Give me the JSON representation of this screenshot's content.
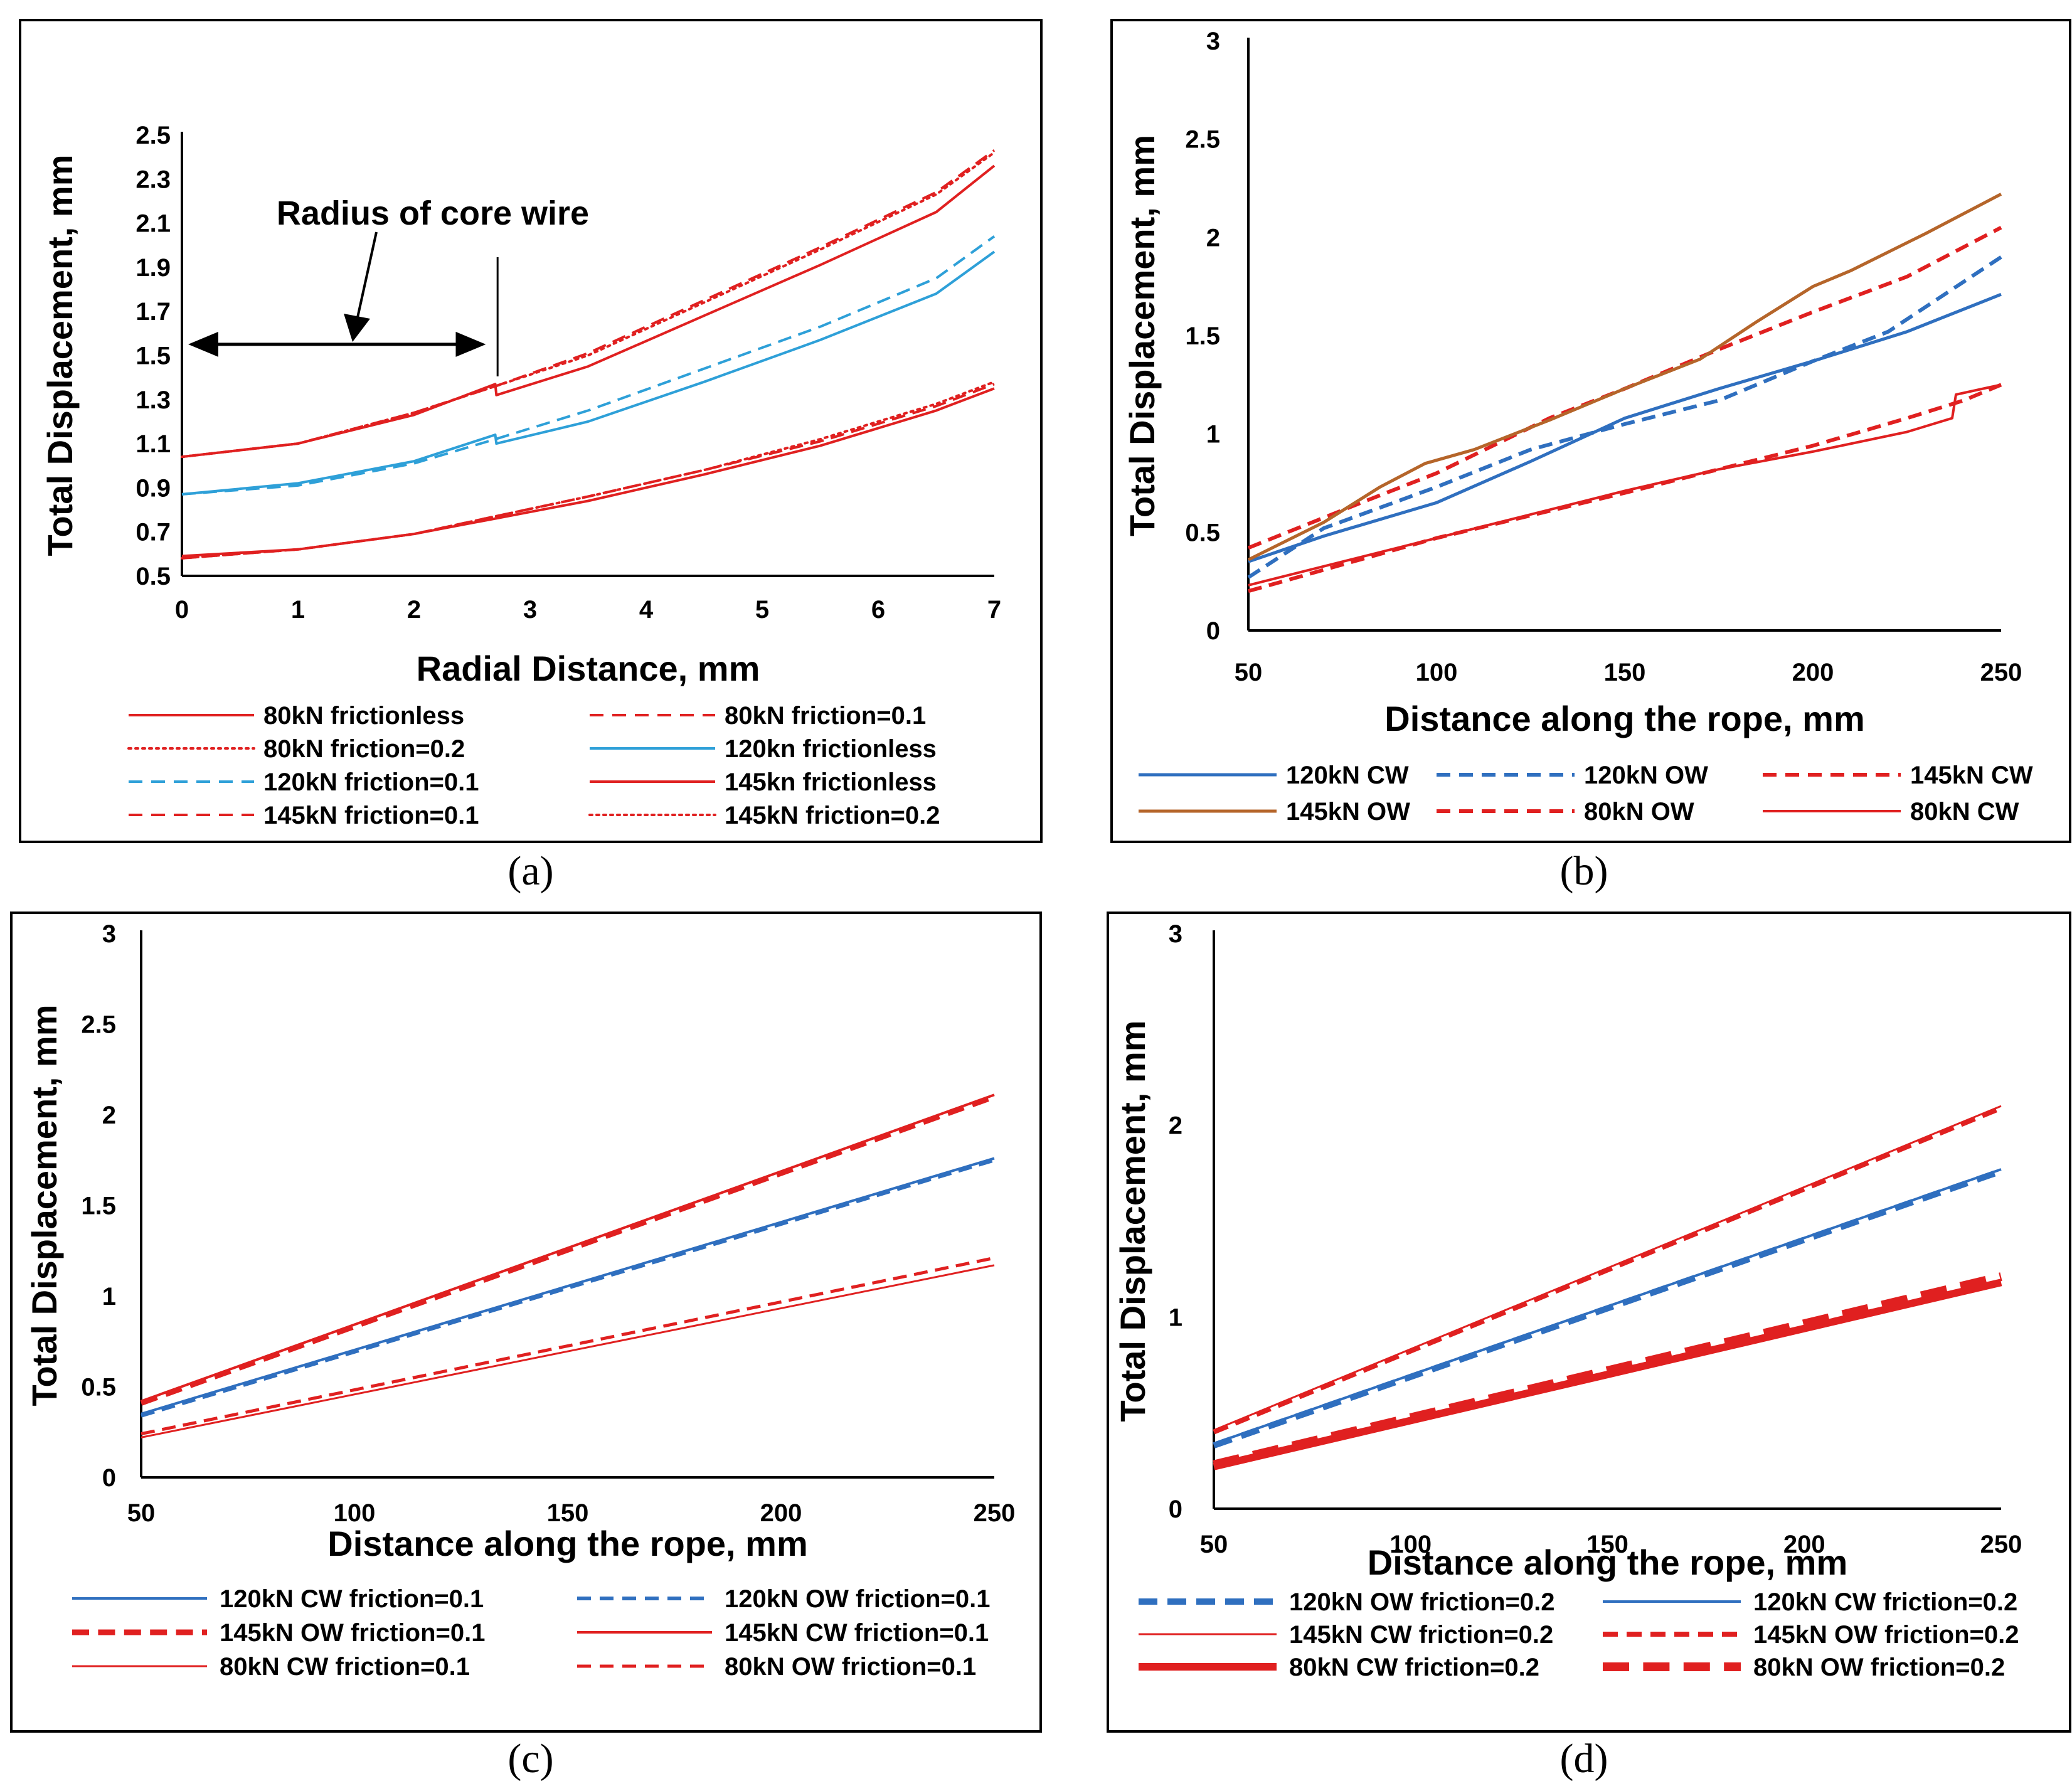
{
  "colors": {
    "red": "#e02020",
    "blue_light": "#2ea0d8",
    "blue": "#2f6fbf",
    "brown": "#b5652a",
    "axis": "#000000"
  },
  "chart_data": [
    {
      "panel_label": "(a)",
      "type": "line",
      "xlabel": "Radial Distance, mm",
      "ylabel": "Total Displacement, mm",
      "xlim": [
        0,
        7
      ],
      "ylim": [
        0.5,
        2.5
      ],
      "x_ticks": [
        "0",
        "1",
        "2",
        "3",
        "4",
        "5",
        "6",
        "7"
      ],
      "y_ticks": [
        "0.5",
        "0.7",
        "0.9",
        "1.1",
        "1.3",
        "1.5",
        "1.7",
        "1.9",
        "2.1",
        "2.3",
        "2.5"
      ],
      "annotation": "Radius of core wire",
      "annotation_span": [
        0,
        2.7
      ],
      "legend_cols": 2,
      "series": [
        {
          "name": "80kN frictionless",
          "color": "red",
          "dash": "solid",
          "width": 4,
          "points": [
            [
              0,
              0.59
            ],
            [
              1,
              0.62
            ],
            [
              2,
              0.69
            ],
            [
              2.7,
              0.76
            ],
            [
              3.5,
              0.84
            ],
            [
              4.5,
              0.96
            ],
            [
              5.5,
              1.09
            ],
            [
              6.5,
              1.25
            ],
            [
              7,
              1.35
            ]
          ]
        },
        {
          "name": "80kN friction=0.1",
          "color": "red",
          "dash": "dash",
          "width": 4,
          "points": [
            [
              0,
              0.58
            ],
            [
              1,
              0.62
            ],
            [
              2,
              0.69
            ],
            [
              2.7,
              0.77
            ],
            [
              3.5,
              0.86
            ],
            [
              4.5,
              0.98
            ],
            [
              5.5,
              1.11
            ],
            [
              6.5,
              1.27
            ],
            [
              7,
              1.37
            ]
          ]
        },
        {
          "name": "80kN friction=0.2",
          "color": "red",
          "dash": "dot",
          "width": 4,
          "points": [
            [
              0,
              0.58
            ],
            [
              1,
              0.62
            ],
            [
              2,
              0.69
            ],
            [
              2.7,
              0.77
            ],
            [
              3.5,
              0.86
            ],
            [
              4.5,
              0.98
            ],
            [
              5.5,
              1.12
            ],
            [
              6.5,
              1.28
            ],
            [
              7,
              1.38
            ]
          ]
        },
        {
          "name": "120kn frictionless",
          "color": "blue_light",
          "dash": "solid",
          "width": 4,
          "points": [
            [
              0,
              0.87
            ],
            [
              1,
              0.92
            ],
            [
              2,
              1.02
            ],
            [
              2.7,
              1.14
            ],
            [
              2.71,
              1.1
            ],
            [
              3.5,
              1.2
            ],
            [
              4.5,
              1.38
            ],
            [
              5.5,
              1.57
            ],
            [
              6.5,
              1.78
            ],
            [
              7,
              1.97
            ]
          ]
        },
        {
          "name": "120kN friction=0.1",
          "color": "blue_light",
          "dash": "dash",
          "width": 4,
          "points": [
            [
              0,
              0.87
            ],
            [
              1,
              0.91
            ],
            [
              2,
              1.01
            ],
            [
              2.7,
              1.12
            ],
            [
              3.5,
              1.25
            ],
            [
              4.5,
              1.44
            ],
            [
              5.5,
              1.63
            ],
            [
              6.5,
              1.85
            ],
            [
              7,
              2.04
            ]
          ]
        },
        {
          "name": "145kn frictionless",
          "color": "red",
          "dash": "solid",
          "width": 4,
          "points": [
            [
              0,
              1.04
            ],
            [
              1,
              1.1
            ],
            [
              2,
              1.23
            ],
            [
              2.7,
              1.37
            ],
            [
              2.71,
              1.32
            ],
            [
              3.5,
              1.45
            ],
            [
              4.5,
              1.68
            ],
            [
              5.5,
              1.91
            ],
            [
              6.5,
              2.15
            ],
            [
              7,
              2.36
            ]
          ]
        },
        {
          "name": "145kN friction=0.1",
          "color": "red",
          "dash": "dash",
          "width": 4,
          "points": [
            [
              0,
              1.04
            ],
            [
              1,
              1.1
            ],
            [
              2,
              1.24
            ],
            [
              2.7,
              1.36
            ],
            [
              3.5,
              1.51
            ],
            [
              4.5,
              1.75
            ],
            [
              5.5,
              1.99
            ],
            [
              6.5,
              2.24
            ],
            [
              7,
              2.43
            ]
          ]
        },
        {
          "name": "145kN friction=0.2",
          "color": "red",
          "dash": "dot",
          "width": 4,
          "points": [
            [
              0,
              1.04
            ],
            [
              1,
              1.1
            ],
            [
              2,
              1.24
            ],
            [
              2.7,
              1.36
            ],
            [
              3.5,
              1.5
            ],
            [
              4.5,
              1.74
            ],
            [
              5.5,
              1.98
            ],
            [
              6.5,
              2.23
            ],
            [
              7,
              2.42
            ]
          ]
        }
      ]
    },
    {
      "panel_label": "(b)",
      "type": "line",
      "xlabel": "Distance along the rope, mm",
      "ylabel": "Total Displacement, mm",
      "xlim": [
        50,
        250
      ],
      "ylim": [
        0,
        3
      ],
      "x_ticks": [
        "50",
        "100",
        "150",
        "200",
        "250"
      ],
      "y_ticks": [
        "0",
        "0.5",
        "1",
        "1.5",
        "2",
        "2.5",
        "3"
      ],
      "legend_cols": 3,
      "series": [
        {
          "name": "120kN CW",
          "color": "blue",
          "dash": "solid",
          "width": 5,
          "points": [
            [
              50,
              0.35
            ],
            [
              70,
              0.48
            ],
            [
              100,
              0.65
            ],
            [
              125,
              0.86
            ],
            [
              150,
              1.08
            ],
            [
              175,
              1.23
            ],
            [
              200,
              1.37
            ],
            [
              225,
              1.52
            ],
            [
              250,
              1.71
            ]
          ]
        },
        {
          "name": "120kN OW",
          "color": "blue",
          "dash": "dash",
          "width": 6,
          "points": [
            [
              50,
              0.27
            ],
            [
              70,
              0.52
            ],
            [
              100,
              0.73
            ],
            [
              125,
              0.92
            ],
            [
              150,
              1.05
            ],
            [
              175,
              1.17
            ],
            [
              200,
              1.37
            ],
            [
              220,
              1.52
            ],
            [
              250,
              1.9
            ]
          ]
        },
        {
          "name": "145kN CW",
          "color": "red",
          "dash": "dash",
          "width": 6,
          "points": [
            [
              50,
              0.42
            ],
            [
              80,
              0.65
            ],
            [
              100,
              0.8
            ],
            [
              130,
              1.08
            ],
            [
              150,
              1.23
            ],
            [
              175,
              1.43
            ],
            [
              200,
              1.62
            ],
            [
              225,
              1.8
            ],
            [
              250,
              2.05
            ]
          ]
        },
        {
          "name": "145kN OW",
          "color": "brown",
          "dash": "solid",
          "width": 5,
          "points": [
            [
              50,
              0.36
            ],
            [
              70,
              0.55
            ],
            [
              85,
              0.73
            ],
            [
              97,
              0.85
            ],
            [
              110,
              0.92
            ],
            [
              130,
              1.07
            ],
            [
              150,
              1.23
            ],
            [
              170,
              1.38
            ],
            [
              185,
              1.57
            ],
            [
              200,
              1.75
            ],
            [
              210,
              1.83
            ],
            [
              230,
              2.02
            ],
            [
              250,
              2.22
            ]
          ]
        },
        {
          "name": "80kN OW",
          "color": "red",
          "dash": "dash",
          "width": 6,
          "points": [
            [
              50,
              0.2
            ],
            [
              100,
              0.47
            ],
            [
              150,
              0.7
            ],
            [
              175,
              0.82
            ],
            [
              200,
              0.94
            ],
            [
              225,
              1.08
            ],
            [
              240,
              1.17
            ],
            [
              250,
              1.25
            ]
          ]
        },
        {
          "name": "80kN CW",
          "color": "red",
          "dash": "solid",
          "width": 4,
          "points": [
            [
              50,
              0.23
            ],
            [
              100,
              0.47
            ],
            [
              150,
              0.71
            ],
            [
              175,
              0.82
            ],
            [
              200,
              0.91
            ],
            [
              225,
              1.01
            ],
            [
              237,
              1.08
            ],
            [
              238,
              1.2
            ],
            [
              250,
              1.25
            ]
          ]
        }
      ]
    },
    {
      "panel_label": "(c)",
      "type": "line",
      "xlabel": "Distance along the rope, mm",
      "ylabel": "Total Displacement, mm",
      "xlim": [
        50,
        250
      ],
      "ylim": [
        0,
        3
      ],
      "x_ticks": [
        "50",
        "100",
        "150",
        "200",
        "250"
      ],
      "y_ticks": [
        "0",
        "0.5",
        "1",
        "1.5",
        "2",
        "2.5",
        "3"
      ],
      "legend_cols": 2,
      "series": [
        {
          "name": "120kN CW friction=0.1",
          "color": "blue",
          "dash": "solid",
          "width": 4,
          "points": [
            [
              50,
              0.35
            ],
            [
              250,
              1.76
            ]
          ]
        },
        {
          "name": "120kN OW friction=0.1",
          "color": "blue",
          "dash": "dash",
          "width": 6,
          "points": [
            [
              50,
              0.34
            ],
            [
              250,
              1.75
            ]
          ]
        },
        {
          "name": "145kN OW friction=0.1",
          "color": "red",
          "dash": "dash",
          "width": 9,
          "points": [
            [
              50,
              0.41
            ],
            [
              250,
              2.1
            ]
          ]
        },
        {
          "name": "145kN CW friction=0.1",
          "color": "red",
          "dash": "solid",
          "width": 4,
          "points": [
            [
              50,
              0.42
            ],
            [
              250,
              2.11
            ]
          ]
        },
        {
          "name": "80kN CW friction=0.1",
          "color": "red",
          "dash": "solid",
          "width": 3,
          "points": [
            [
              50,
              0.22
            ],
            [
              250,
              1.17
            ]
          ]
        },
        {
          "name": "80kN OW friction=0.1",
          "color": "red",
          "dash": "dash",
          "width": 5,
          "points": [
            [
              50,
              0.24
            ],
            [
              250,
              1.21
            ]
          ]
        }
      ]
    },
    {
      "panel_label": "(d)",
      "type": "line",
      "xlabel": "Distance along the rope, mm",
      "ylabel": "Total Displacement, mm",
      "xlim": [
        50,
        250
      ],
      "ylim": [
        0,
        3
      ],
      "x_ticks": [
        "50",
        "100",
        "150",
        "200",
        "250"
      ],
      "y_ticks": [
        "0",
        "1",
        "2",
        "3"
      ],
      "legend_cols": 2,
      "series": [
        {
          "name": "120kN OW friction=0.2",
          "color": "blue",
          "dash": "dash",
          "width": 10,
          "points": [
            [
              50,
              0.33
            ],
            [
              250,
              1.76
            ]
          ]
        },
        {
          "name": "120kN CW friction=0.2",
          "color": "blue",
          "dash": "solid",
          "width": 4,
          "points": [
            [
              50,
              0.34
            ],
            [
              250,
              1.77
            ]
          ]
        },
        {
          "name": "145kN CW friction=0.2",
          "color": "red",
          "dash": "solid",
          "width": 3,
          "points": [
            [
              50,
              0.41
            ],
            [
              250,
              2.1
            ]
          ]
        },
        {
          "name": "145kN OW friction=0.2",
          "color": "red",
          "dash": "dash",
          "width": 8,
          "points": [
            [
              50,
              0.4
            ],
            [
              250,
              2.09
            ]
          ]
        },
        {
          "name": "80kN CW friction=0.2",
          "color": "red",
          "dash": "solid",
          "width": 12,
          "points": [
            [
              50,
              0.22
            ],
            [
              250,
              1.18
            ]
          ]
        },
        {
          "name": "80kN OW friction=0.2",
          "color": "red",
          "dash": "dash",
          "width": 14,
          "points": [
            [
              50,
              0.23
            ],
            [
              250,
              1.21
            ]
          ]
        }
      ]
    }
  ]
}
